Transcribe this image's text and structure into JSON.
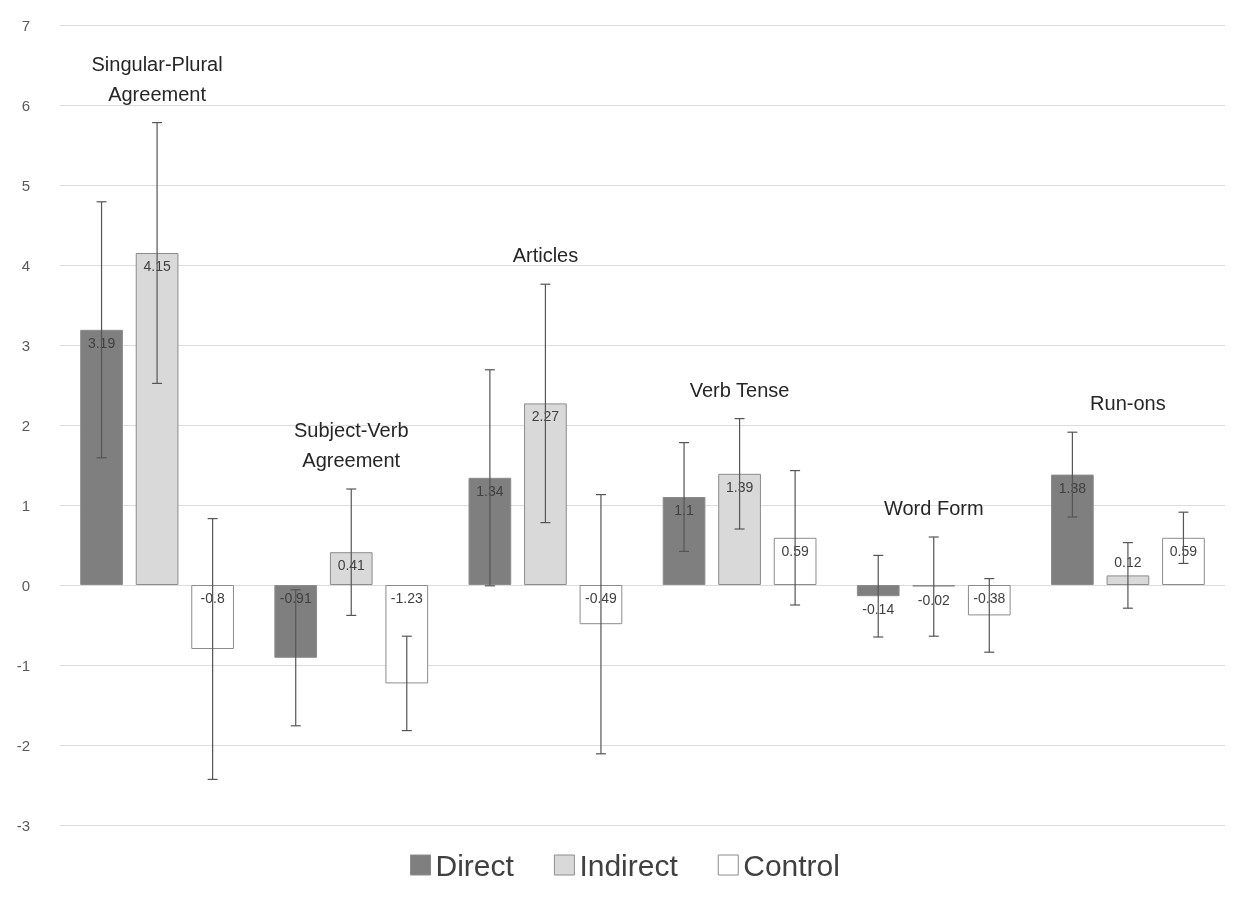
{
  "chart_data": {
    "type": "bar",
    "categories": [
      "Singular-Plural Agreement",
      "Subject-Verb Agreement",
      "Articles",
      "Verb Tense",
      "Word Form",
      "Run-ons"
    ],
    "series": [
      {
        "name": "Direct",
        "color": "#7f7f7f",
        "values": [
          3.19,
          -0.91,
          1.34,
          1.1,
          -0.14,
          1.38
        ],
        "errors": [
          1.6,
          0.85,
          1.35,
          0.68,
          0.51,
          0.53
        ]
      },
      {
        "name": "Indirect",
        "color": "#d9d9d9",
        "values": [
          4.15,
          0.41,
          2.27,
          1.39,
          -0.02,
          0.12
        ],
        "errors": [
          1.63,
          0.79,
          1.49,
          0.69,
          0.62,
          0.41
        ]
      },
      {
        "name": "Control",
        "color": "#ffffff",
        "values": [
          -0.8,
          -1.23,
          -0.49,
          0.59,
          -0.38,
          0.59
        ],
        "errors": [
          1.63,
          0.59,
          1.62,
          0.84,
          0.46,
          0.32
        ]
      }
    ],
    "ylim": [
      -3,
      7
    ],
    "yticks": [
      -3,
      -2,
      -1,
      0,
      1,
      2,
      3,
      4,
      5,
      6,
      7
    ],
    "grid": "y",
    "legend": "bottom",
    "data_labels": true,
    "tick_labels": "y"
  }
}
